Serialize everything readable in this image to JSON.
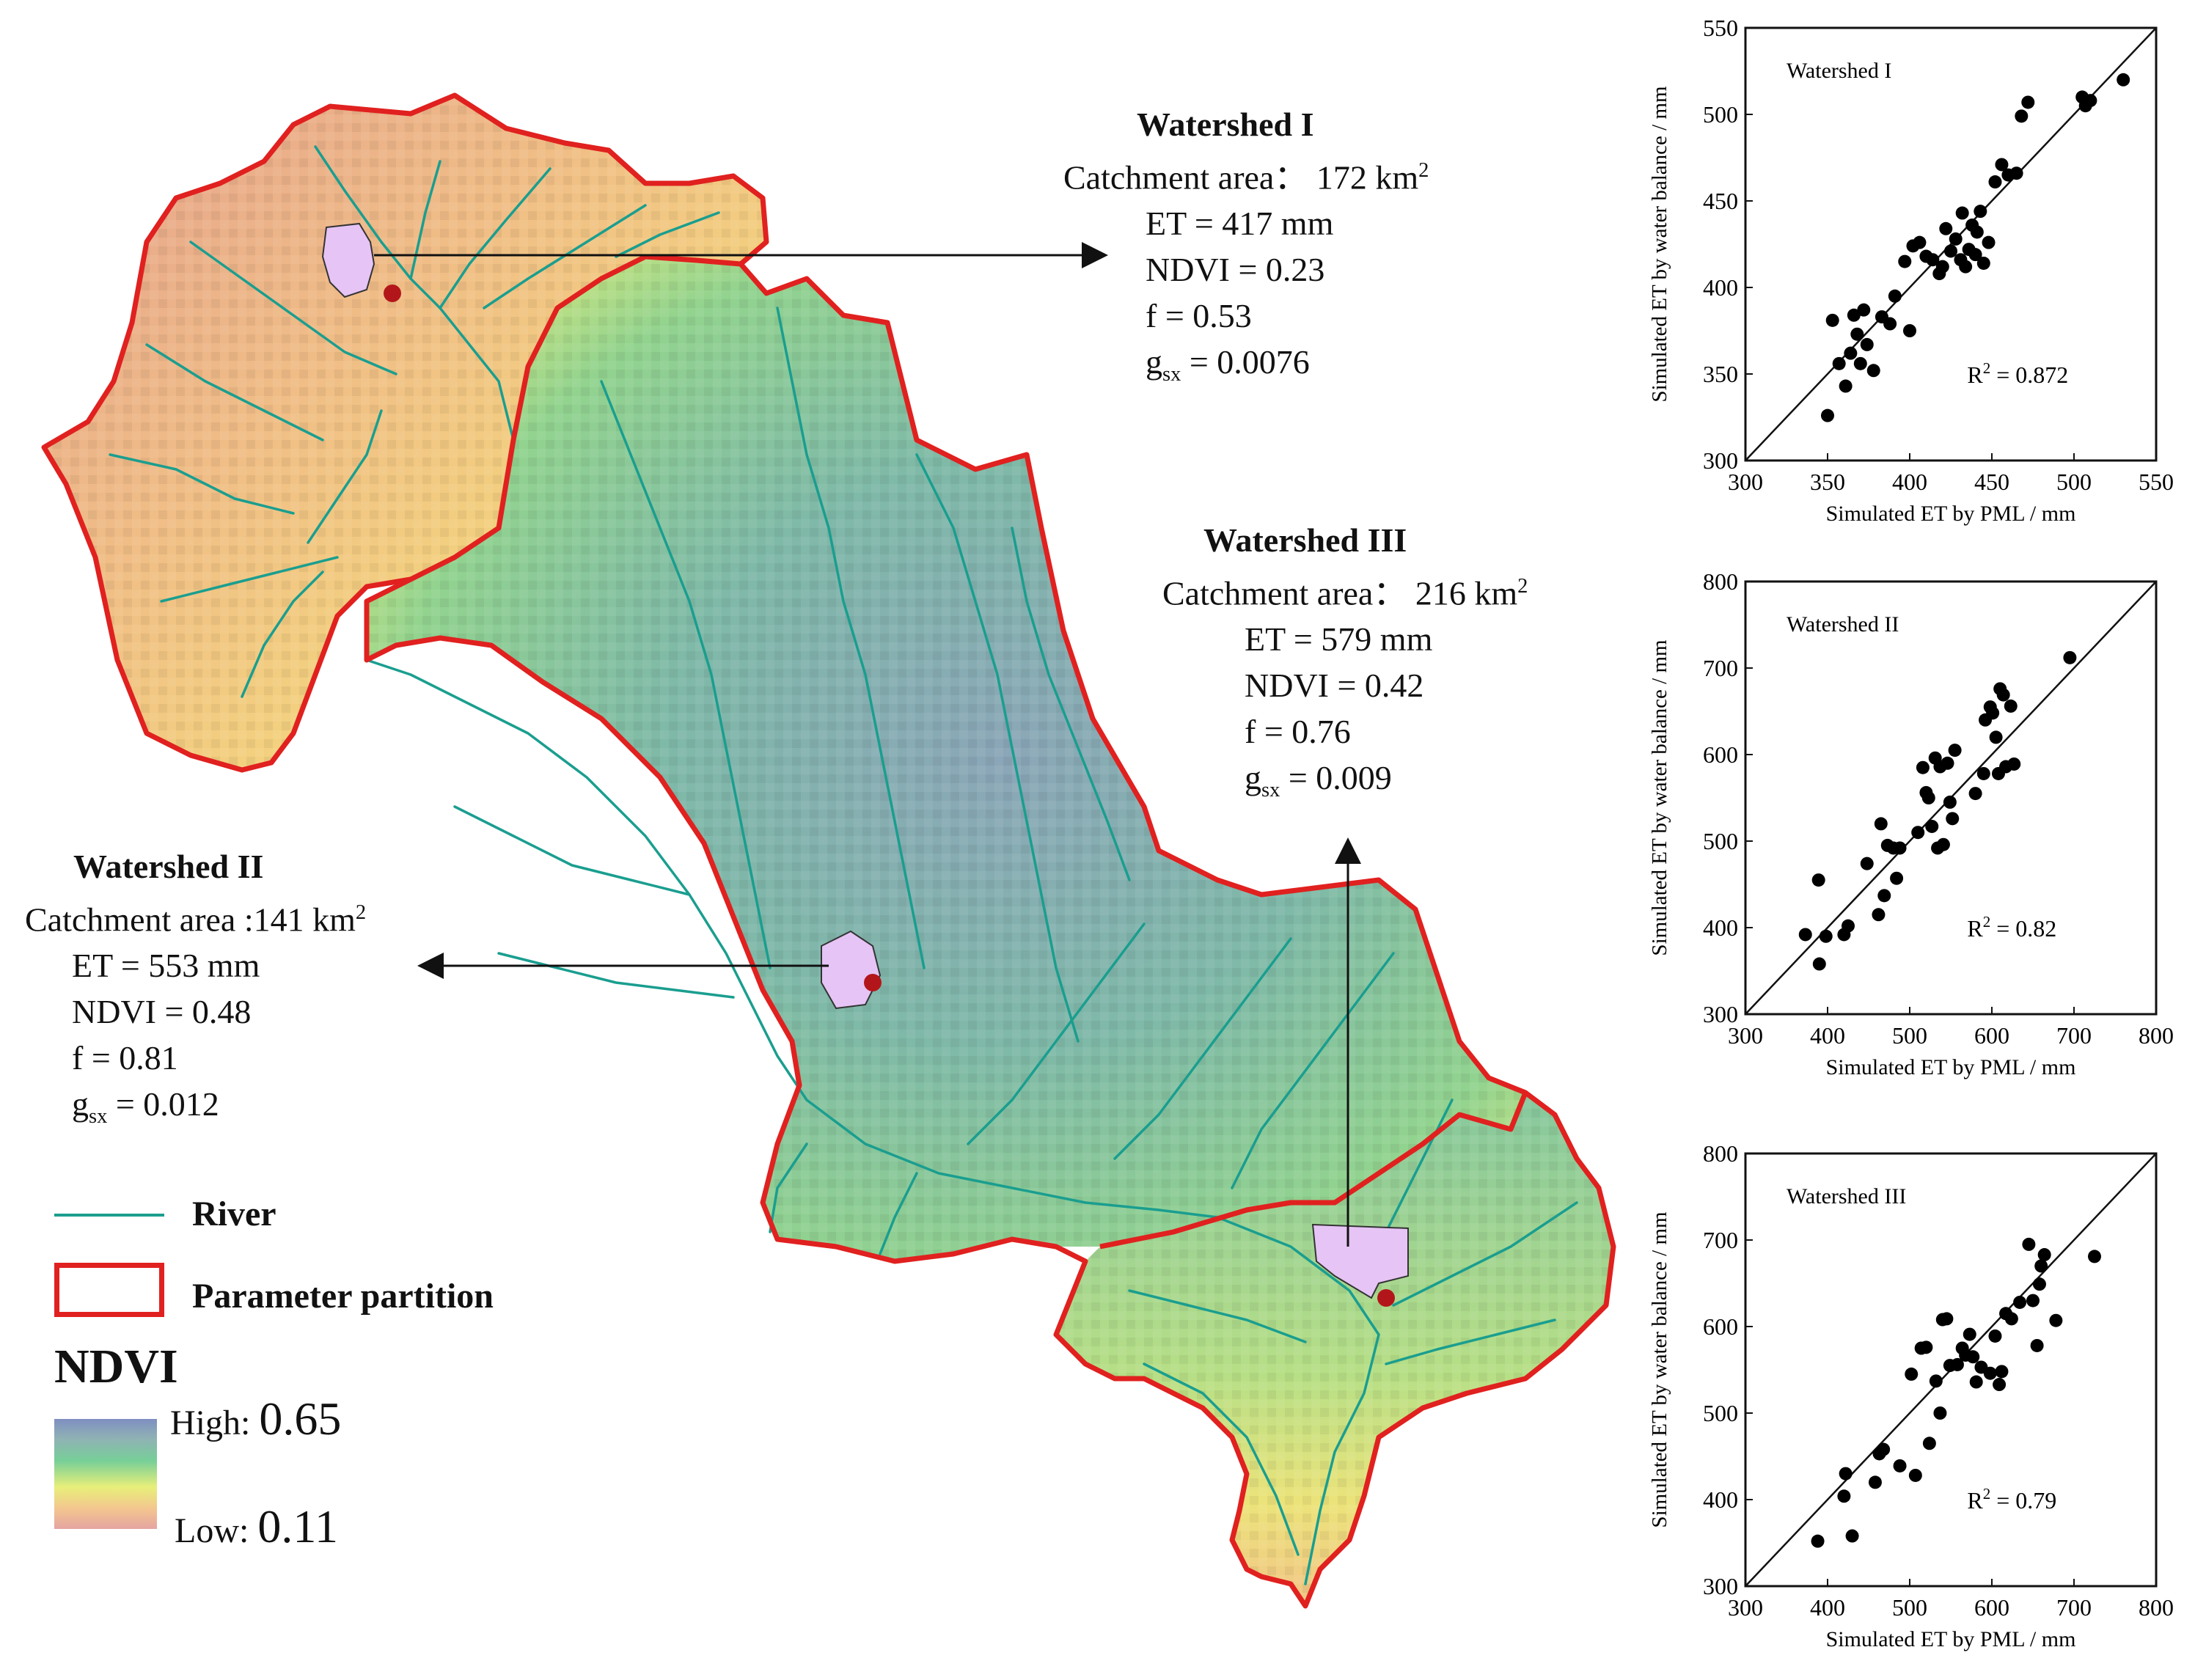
{
  "watershed_I": {
    "title": "Watershed I",
    "area_label": "Catchment area：",
    "area_value": "172 km",
    "area_sup": "2",
    "et": "ET = 417 mm",
    "ndvi": "NDVI =  0.23",
    "f": "f = 0.53",
    "gsx_prefix": "g",
    "gsx_sub": "sx",
    "gsx_value": " = 0.0076"
  },
  "watershed_II": {
    "title": "Watershed II",
    "area_label": "Catchment area :",
    "area_value": "141 km",
    "area_sup": "2",
    "et": "ET = 553 mm",
    "ndvi": "NDVI = 0.48",
    "f": "f =  0.81",
    "gsx_prefix": "g",
    "gsx_sub": "sx",
    "gsx_value": " = 0.012"
  },
  "watershed_III": {
    "title": "Watershed III",
    "area_label": "Catchment area：",
    "area_value": "216 km",
    "area_sup": "2",
    "et": "ET = 579 mm",
    "ndvi": "NDVI = 0.42",
    "f": "f = 0.76",
    "gsx_prefix": "g",
    "gsx_sub": "sx",
    "gsx_value": " = 0.009"
  },
  "legend": {
    "river": "River",
    "partition": "Parameter partition",
    "ndvi_title": "NDVI",
    "high_label": "High:",
    "high_value": "0.65",
    "low_label": "Low:",
    "low_value": "0.11",
    "river_color": "#1a9e8f",
    "partition_color": "#e0211f"
  },
  "chart_data": [
    {
      "type": "scatter",
      "title": "Watershed I",
      "xlabel": "Simulated ET by PML / mm",
      "ylabel": "Simulated ET by water balance / mm",
      "xlim": [
        300,
        550
      ],
      "ylim": [
        300,
        550
      ],
      "xticks": [
        300,
        350,
        400,
        450,
        500,
        550
      ],
      "yticks": [
        300,
        350,
        400,
        450,
        500,
        550
      ],
      "r2_label": "R",
      "r2_sup": "2",
      "r2_value": " = 0.872",
      "one_to_one_line": true,
      "points": [
        [
          350,
          326
        ],
        [
          353,
          381
        ],
        [
          357,
          356
        ],
        [
          361,
          343
        ],
        [
          364,
          362
        ],
        [
          366,
          384
        ],
        [
          368,
          373
        ],
        [
          370,
          356
        ],
        [
          372,
          387
        ],
        [
          374,
          367
        ],
        [
          378,
          352
        ],
        [
          383,
          383
        ],
        [
          388,
          379
        ],
        [
          391,
          395
        ],
        [
          397,
          415
        ],
        [
          400,
          375
        ],
        [
          402,
          424
        ],
        [
          406,
          426
        ],
        [
          410,
          418
        ],
        [
          414,
          416
        ],
        [
          418,
          408
        ],
        [
          420,
          412
        ],
        [
          422,
          434
        ],
        [
          425,
          421
        ],
        [
          428,
          428
        ],
        [
          431,
          416
        ],
        [
          432,
          443
        ],
        [
          434,
          412
        ],
        [
          436,
          422
        ],
        [
          438,
          436
        ],
        [
          440,
          419
        ],
        [
          441,
          432
        ],
        [
          443,
          444
        ],
        [
          445,
          414
        ],
        [
          448,
          426
        ],
        [
          452,
          461
        ],
        [
          456,
          471
        ],
        [
          460,
          465
        ],
        [
          465,
          466
        ],
        [
          468,
          499
        ],
        [
          472,
          507
        ],
        [
          505,
          510
        ],
        [
          507,
          505
        ],
        [
          510,
          508
        ],
        [
          530,
          520
        ]
      ]
    },
    {
      "type": "scatter",
      "title": "Watershed II",
      "xlabel": "Simulated ET by PML / mm",
      "ylabel": "Simulated ET by water balance / mm",
      "xlim": [
        300,
        800
      ],
      "ylim": [
        300,
        800
      ],
      "xticks": [
        300,
        400,
        500,
        600,
        700,
        800
      ],
      "yticks": [
        300,
        400,
        500,
        600,
        700,
        800
      ],
      "r2_label": "R",
      "r2_sup": "2",
      "r2_value": " = 0.82",
      "one_to_one_line": true,
      "points": [
        [
          373,
          392
        ],
        [
          389,
          455
        ],
        [
          390,
          358
        ],
        [
          398,
          390
        ],
        [
          420,
          392
        ],
        [
          425,
          402
        ],
        [
          448,
          474
        ],
        [
          462,
          415
        ],
        [
          465,
          520
        ],
        [
          469,
          437
        ],
        [
          473,
          495
        ],
        [
          480,
          492
        ],
        [
          484,
          457
        ],
        [
          488,
          492
        ],
        [
          510,
          510
        ],
        [
          516,
          585
        ],
        [
          520,
          556
        ],
        [
          523,
          550
        ],
        [
          527,
          517
        ],
        [
          531,
          596
        ],
        [
          534,
          492
        ],
        [
          537,
          586
        ],
        [
          541,
          496
        ],
        [
          546,
          590
        ],
        [
          549,
          545
        ],
        [
          552,
          526
        ],
        [
          555,
          605
        ],
        [
          580,
          555
        ],
        [
          590,
          578
        ],
        [
          592,
          640
        ],
        [
          598,
          655
        ],
        [
          601,
          648
        ],
        [
          605,
          620
        ],
        [
          608,
          578
        ],
        [
          610,
          676
        ],
        [
          614,
          669
        ],
        [
          617,
          586
        ],
        [
          623,
          656
        ],
        [
          627,
          589
        ],
        [
          695,
          712
        ]
      ]
    },
    {
      "type": "scatter",
      "title": "Watershed III",
      "xlabel": "Simulated ET by PML / mm",
      "ylabel": "Simulated ET by water balance / mm",
      "xlim": [
        300,
        800
      ],
      "ylim": [
        300,
        800
      ],
      "xticks": [
        300,
        400,
        500,
        600,
        700,
        800
      ],
      "yticks": [
        300,
        400,
        500,
        600,
        700,
        800
      ],
      "r2_label": "R",
      "r2_sup": "2",
      "r2_value": " = 0.79",
      "one_to_one_line": true,
      "points": [
        [
          388,
          352
        ],
        [
          420,
          404
        ],
        [
          422,
          430
        ],
        [
          430,
          358
        ],
        [
          458,
          420
        ],
        [
          463,
          453
        ],
        [
          468,
          458
        ],
        [
          488,
          439
        ],
        [
          502,
          545
        ],
        [
          507,
          428
        ],
        [
          514,
          575
        ],
        [
          520,
          576
        ],
        [
          524,
          465
        ],
        [
          532,
          537
        ],
        [
          537,
          500
        ],
        [
          540,
          608
        ],
        [
          545,
          609
        ],
        [
          549,
          555
        ],
        [
          558,
          556
        ],
        [
          564,
          575
        ],
        [
          568,
          567
        ],
        [
          573,
          591
        ],
        [
          577,
          565
        ],
        [
          581,
          536
        ],
        [
          587,
          553
        ],
        [
          598,
          546
        ],
        [
          604,
          589
        ],
        [
          609,
          533
        ],
        [
          612,
          548
        ],
        [
          617,
          615
        ],
        [
          624,
          609
        ],
        [
          634,
          628
        ],
        [
          645,
          695
        ],
        [
          650,
          630
        ],
        [
          655,
          578
        ],
        [
          658,
          649
        ],
        [
          660,
          670
        ],
        [
          664,
          683
        ],
        [
          678,
          607
        ],
        [
          725,
          681
        ]
      ]
    }
  ]
}
